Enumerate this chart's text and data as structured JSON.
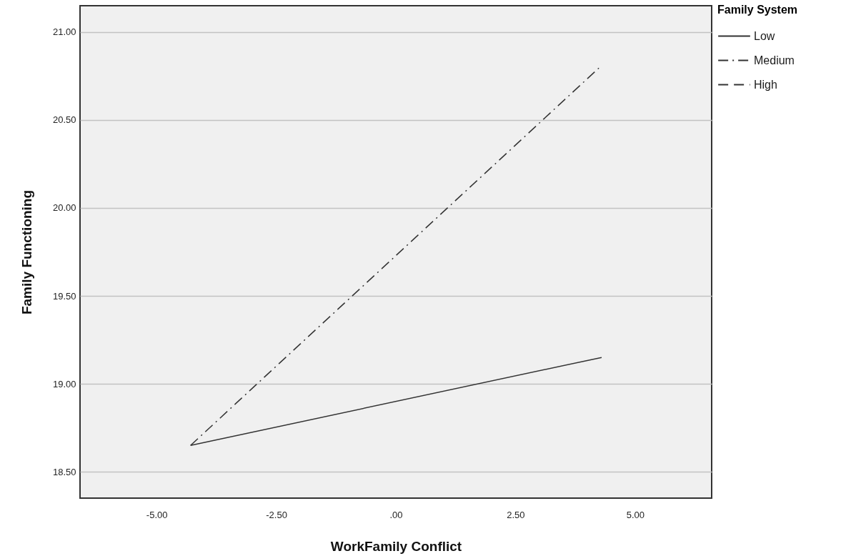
{
  "chart_data": {
    "type": "line",
    "xlabel": "WorkFamily Conflict",
    "ylabel": "Family Functioning",
    "legend_title": "Family System",
    "xlim": [
      -6.6,
      6.6
    ],
    "ylim": [
      18.35,
      21.15
    ],
    "xticks": [
      {
        "value": -5,
        "label": "-5.00"
      },
      {
        "value": -2.5,
        "label": "-2.50"
      },
      {
        "value": 0,
        "label": ".00"
      },
      {
        "value": 2.5,
        "label": "2.50"
      },
      {
        "value": 5,
        "label": "5.00"
      }
    ],
    "yticks": [
      {
        "value": 18.5,
        "label": "18.50"
      },
      {
        "value": 19,
        "label": "19.00"
      },
      {
        "value": 19.5,
        "label": "19.50"
      },
      {
        "value": 20,
        "label": "20.00"
      },
      {
        "value": 20.5,
        "label": "20.50"
      },
      {
        "value": 21,
        "label": "21.00"
      }
    ],
    "x": [
      -4.29,
      4.3
    ],
    "series": [
      {
        "name": "Low",
        "color": "#333333",
        "line_style": "solid",
        "values": [
          18.65,
          19.15
        ]
      },
      {
        "name": "Medium",
        "color": "#333333",
        "line_style": "dashdot",
        "values": [
          18.65,
          20.81
        ]
      },
      {
        "name": "High",
        "color": "#333333",
        "line_style": "dashed",
        "values": [
          null,
          null
        ]
      }
    ],
    "grid": "y",
    "legend": "top right",
    "marker": "none"
  }
}
